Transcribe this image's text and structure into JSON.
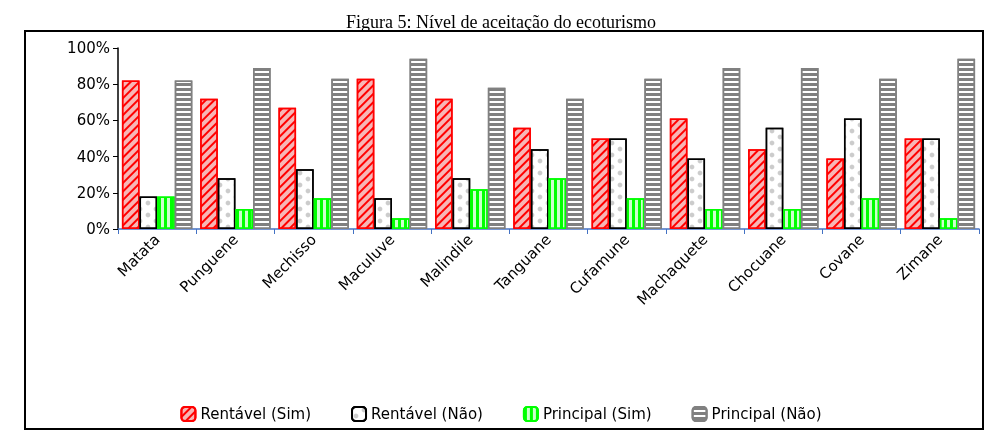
{
  "chart_data": {
    "type": "bar",
    "title": "Figura 5: Nível de aceitação do ecoturismo",
    "categories": [
      "Matata",
      "Punguene",
      "Mechisso",
      "Maculuve",
      "Malindile",
      "Tanguane",
      "Cufamune",
      "Machaquete",
      "Chocuane",
      "Covane",
      "Zimane"
    ],
    "series": [
      {
        "name": "Rentável (Sim)",
        "color": "#ff0000",
        "values": [
          82,
          72,
          67,
          83,
          72,
          56,
          50,
          61,
          44,
          39,
          50
        ]
      },
      {
        "name": "Rentável (Não)",
        "color": "#000000",
        "values": [
          18,
          28,
          33,
          17,
          28,
          44,
          50,
          39,
          56,
          61,
          50
        ]
      },
      {
        "name": "Principal (Sim)",
        "color": "#00ff00",
        "values": [
          18,
          11,
          17,
          6,
          22,
          28,
          17,
          11,
          11,
          17,
          6
        ]
      },
      {
        "name": "Principal (Não)",
        "color": "#808080",
        "values": [
          82,
          89,
          83,
          94,
          78,
          72,
          83,
          89,
          89,
          83,
          94
        ]
      }
    ],
    "ylim": [
      0,
      100
    ],
    "yticks": [
      {
        "value": 0,
        "label": "0%"
      },
      {
        "value": 20,
        "label": "20%"
      },
      {
        "value": 40,
        "label": "40%"
      },
      {
        "value": 60,
        "label": "60%"
      },
      {
        "value": 80,
        "label": "80%"
      },
      {
        "value": 100,
        "label": "100%"
      }
    ],
    "grid": false,
    "legend": "bottom"
  }
}
